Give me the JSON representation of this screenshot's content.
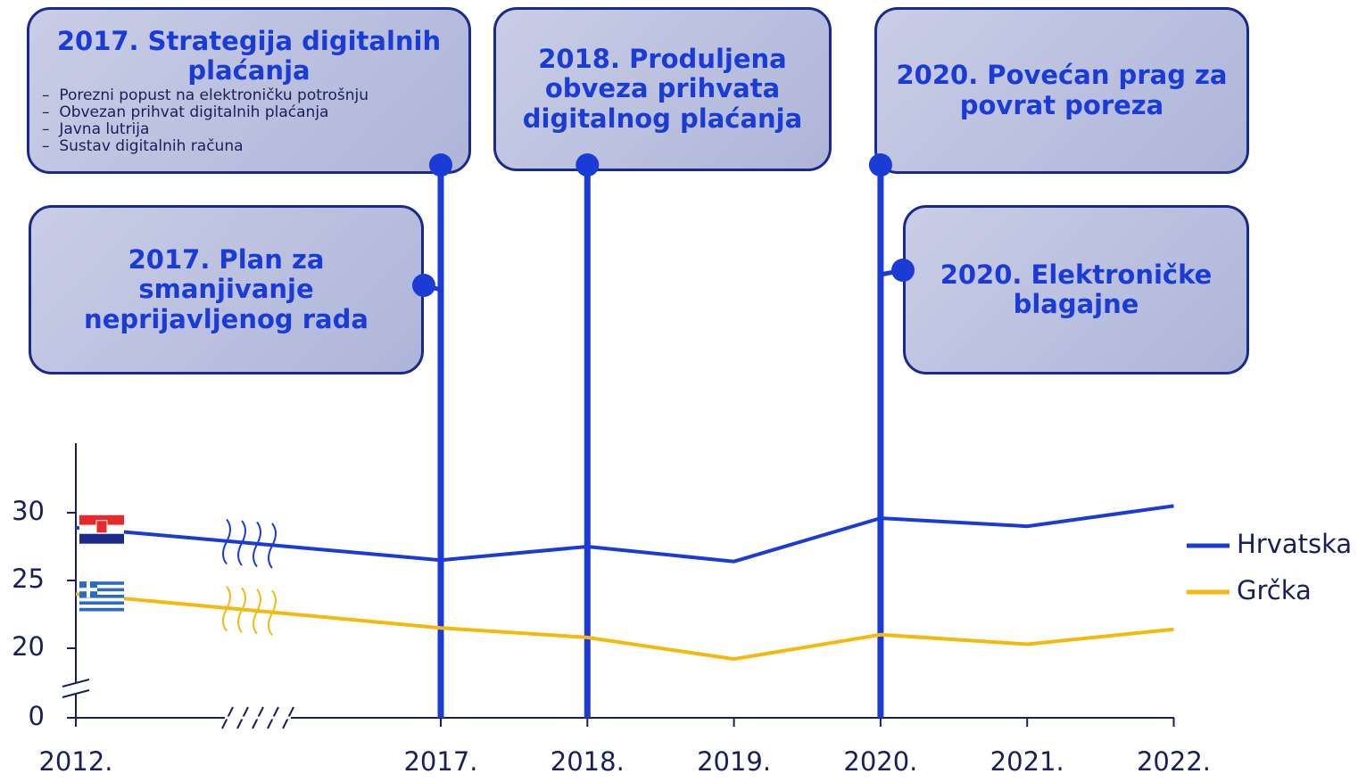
{
  "chart_data": {
    "type": "line",
    "categories": [
      "2012.",
      "2017.",
      "2018.",
      "2019.",
      "2020.",
      "2021.",
      "2022."
    ],
    "series": [
      {
        "name": "Hrvatska",
        "color": "#1a3bd6",
        "values": [
          28.9,
          26.5,
          27.5,
          26.4,
          29.6,
          29.0,
          30.5
        ]
      },
      {
        "name": "Grčka",
        "color": "#f5b80f",
        "values": [
          24.0,
          21.5,
          20.8,
          19.2,
          21.0,
          20.3,
          21.4
        ]
      }
    ],
    "ylim": [
      0,
      35
    ],
    "yticks": [
      0,
      20,
      25,
      30
    ],
    "annotations": [
      {
        "title": "2017. Strategija digitalnih plaćanja",
        "items": [
          "Porezni popust na elektroničku potrošnju",
          "Obvezan prihvat digitalnih plaćanja",
          "Javna lutrija",
          "Sustav digitalnih računa"
        ]
      },
      {
        "title": "2018. Produljena obveza prihvata digitalnog plaćanja"
      },
      {
        "title": "2020. Povećan prag za povrat poreza"
      },
      {
        "title": "2017. Plan za smanjivanje neprijavljenog rada"
      },
      {
        "title": "2020. Elektroničke blagajne"
      }
    ]
  }
}
